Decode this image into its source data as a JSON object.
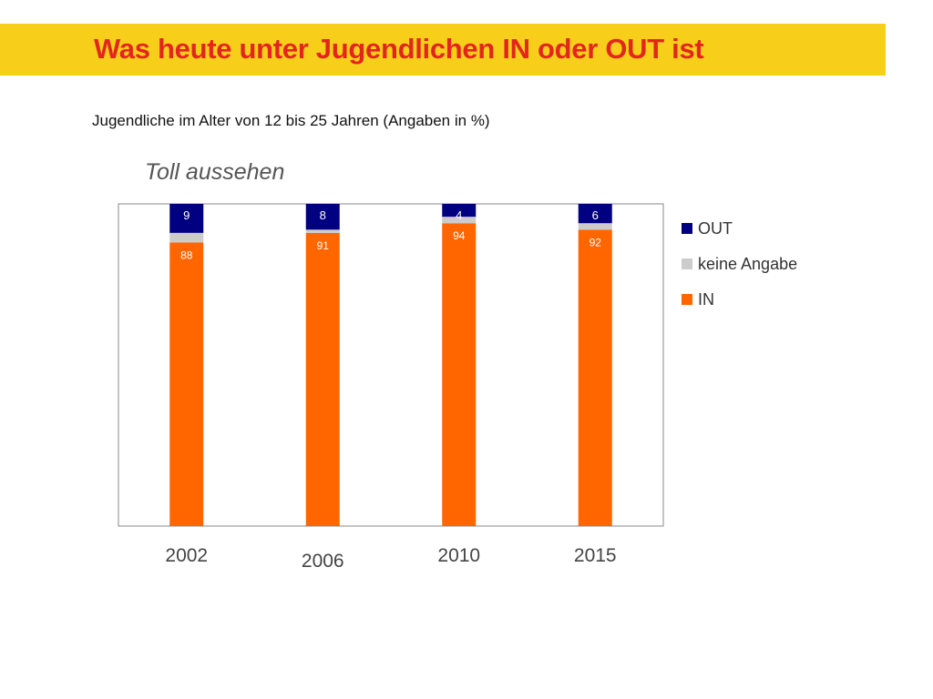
{
  "header": {
    "title": "Was heute unter Jugendlichen IN oder OUT ist"
  },
  "subtitle": "Jugendliche im Alter von 12 bis 25 Jahren (Angaben in %)",
  "chart_data": {
    "type": "bar",
    "stacked": true,
    "title": "Toll aussehen",
    "categories": [
      "2002",
      "2006",
      "2010",
      "2015"
    ],
    "series": [
      {
        "name": "IN",
        "values": [
          88,
          91,
          94,
          92
        ],
        "color": "#ff6600"
      },
      {
        "name": "keine Angabe",
        "values": [
          3,
          1,
          2,
          2
        ],
        "color": "#cccccc"
      },
      {
        "name": "OUT",
        "values": [
          9,
          8,
          4,
          6
        ],
        "color": "#000080"
      }
    ],
    "data_labels": {
      "IN": [
        "88",
        "91",
        "94",
        "92"
      ],
      "OUT": [
        "9",
        "8",
        "4",
        "6"
      ]
    },
    "legend": [
      "OUT",
      "keine Angabe",
      "IN"
    ],
    "legend_position": "right",
    "ylim": [
      0,
      100
    ],
    "grid": false,
    "xlabel": "",
    "ylabel": ""
  }
}
